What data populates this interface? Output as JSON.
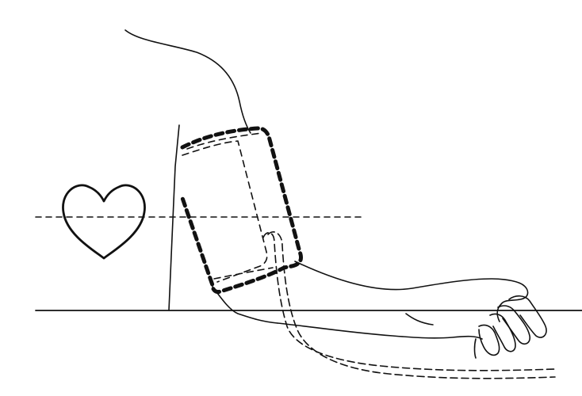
{
  "figure": {
    "subject": "blood-pressure-cuff-placement",
    "colors": {
      "ink": "#111111",
      "background": "#ffffff"
    },
    "icons": {
      "heart": "heart-outline-icon"
    }
  }
}
